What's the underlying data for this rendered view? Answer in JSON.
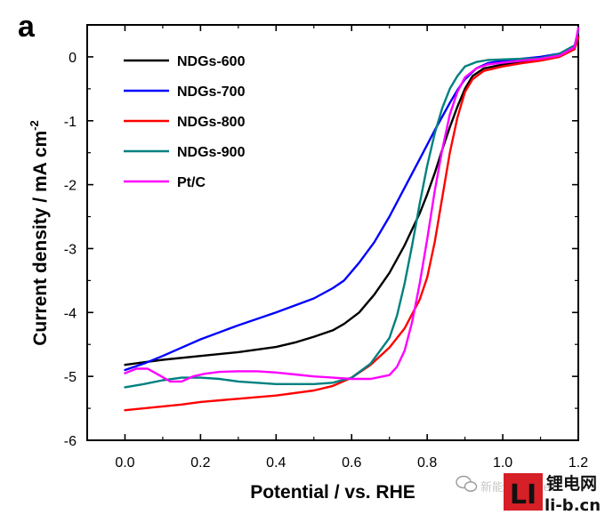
{
  "chart_data": {
    "type": "line",
    "panel_label": "a",
    "title": "",
    "xlabel": "Potential / vs. RHE",
    "ylabel_main": "Current density / mA cm",
    "ylabel_sup": "-2",
    "xlim": [
      -0.1,
      1.2
    ],
    "ylim": [
      -6,
      0.5
    ],
    "xticks": [
      0.0,
      0.2,
      0.4,
      0.6,
      0.8,
      1.0,
      1.2
    ],
    "xtick_labels": [
      "0.0",
      "0.2",
      "0.4",
      "0.6",
      "0.8",
      "1.0",
      "1.2"
    ],
    "yticks": [
      0,
      -1,
      -2,
      -3,
      -4,
      -5,
      -6
    ],
    "ytick_labels": [
      "0",
      "-1",
      "-2",
      "-3",
      "-4",
      "-5",
      "-6"
    ],
    "grid": false,
    "legend_position": "top-left",
    "series": [
      {
        "name": "NDGs-600",
        "color": "#000000",
        "x": [
          0.0,
          0.05,
          0.1,
          0.2,
          0.3,
          0.4,
          0.45,
          0.5,
          0.55,
          0.58,
          0.62,
          0.66,
          0.7,
          0.74,
          0.78,
          0.8,
          0.82,
          0.84,
          0.86,
          0.88,
          0.9,
          0.92,
          0.95,
          1.0,
          1.05,
          1.1,
          1.15,
          1.19,
          1.2
        ],
        "y": [
          -4.82,
          -4.78,
          -4.74,
          -4.68,
          -4.62,
          -4.54,
          -4.47,
          -4.38,
          -4.28,
          -4.18,
          -4.0,
          -3.72,
          -3.38,
          -2.95,
          -2.45,
          -2.15,
          -1.82,
          -1.45,
          -1.1,
          -0.78,
          -0.5,
          -0.3,
          -0.18,
          -0.12,
          -0.08,
          -0.04,
          0.02,
          0.15,
          0.32
        ]
      },
      {
        "name": "NDGs-700",
        "color": "#0000ff",
        "x": [
          0.0,
          0.05,
          0.1,
          0.15,
          0.2,
          0.3,
          0.4,
          0.5,
          0.55,
          0.58,
          0.62,
          0.66,
          0.7,
          0.74,
          0.78,
          0.82,
          0.86,
          0.88,
          0.9,
          0.93,
          0.96,
          1.0,
          1.05,
          1.1,
          1.15,
          1.19,
          1.2
        ],
        "y": [
          -4.9,
          -4.8,
          -4.68,
          -4.55,
          -4.42,
          -4.2,
          -4.0,
          -3.78,
          -3.62,
          -3.5,
          -3.22,
          -2.9,
          -2.5,
          -2.05,
          -1.6,
          -1.15,
          -0.72,
          -0.52,
          -0.35,
          -0.18,
          -0.1,
          -0.06,
          -0.03,
          0.0,
          0.05,
          0.15,
          0.3
        ]
      },
      {
        "name": "NDGs-800",
        "color": "#ff0000",
        "x": [
          0.0,
          0.05,
          0.1,
          0.15,
          0.2,
          0.3,
          0.4,
          0.5,
          0.55,
          0.6,
          0.65,
          0.7,
          0.74,
          0.78,
          0.8,
          0.82,
          0.84,
          0.86,
          0.88,
          0.9,
          0.92,
          0.95,
          1.0,
          1.05,
          1.1,
          1.15,
          1.19,
          1.2
        ],
        "y": [
          -5.53,
          -5.5,
          -5.47,
          -5.44,
          -5.4,
          -5.35,
          -5.3,
          -5.22,
          -5.15,
          -5.02,
          -4.82,
          -4.55,
          -4.25,
          -3.8,
          -3.45,
          -2.9,
          -2.2,
          -1.5,
          -0.95,
          -0.55,
          -0.35,
          -0.22,
          -0.15,
          -0.1,
          -0.06,
          0.0,
          0.12,
          0.3
        ]
      },
      {
        "name": "NDGs-900",
        "color": "#008080",
        "x": [
          0.0,
          0.05,
          0.1,
          0.15,
          0.2,
          0.25,
          0.3,
          0.4,
          0.5,
          0.55,
          0.6,
          0.65,
          0.7,
          0.72,
          0.74,
          0.76,
          0.78,
          0.8,
          0.82,
          0.84,
          0.86,
          0.88,
          0.9,
          0.93,
          0.96,
          1.0,
          1.05,
          1.1,
          1.15,
          1.19,
          1.2
        ],
        "y": [
          -5.17,
          -5.12,
          -5.06,
          -5.02,
          -5.02,
          -5.04,
          -5.08,
          -5.12,
          -5.12,
          -5.1,
          -5.02,
          -4.8,
          -4.4,
          -4.05,
          -3.55,
          -2.95,
          -2.3,
          -1.7,
          -1.2,
          -0.8,
          -0.5,
          -0.3,
          -0.15,
          -0.08,
          -0.05,
          -0.04,
          -0.03,
          -0.02,
          0.05,
          0.18,
          0.4
        ]
      },
      {
        "name": "Pt/C",
        "color": "#ff00ff",
        "x": [
          0.0,
          0.03,
          0.06,
          0.09,
          0.12,
          0.15,
          0.18,
          0.21,
          0.25,
          0.3,
          0.35,
          0.4,
          0.45,
          0.5,
          0.55,
          0.6,
          0.65,
          0.7,
          0.72,
          0.74,
          0.76,
          0.78,
          0.8,
          0.82,
          0.84,
          0.86,
          0.88,
          0.9,
          0.93,
          0.96,
          1.0,
          1.05,
          1.1,
          1.15,
          1.19,
          1.2
        ],
        "y": [
          -4.95,
          -4.88,
          -4.88,
          -4.98,
          -5.08,
          -5.08,
          -5.0,
          -4.96,
          -4.93,
          -4.92,
          -4.92,
          -4.94,
          -4.97,
          -5.0,
          -5.02,
          -5.04,
          -5.04,
          -4.98,
          -4.85,
          -4.6,
          -4.15,
          -3.55,
          -2.85,
          -2.1,
          -1.45,
          -0.9,
          -0.55,
          -0.32,
          -0.18,
          -0.12,
          -0.09,
          -0.06,
          -0.03,
          0.02,
          0.15,
          0.45
        ]
      }
    ]
  },
  "watermark": {
    "site_name": "锂电网",
    "site_url": "li-b.cn",
    "logo_letters": "LI",
    "logo_color": "#d61f26",
    "side_text": "新能源Leader"
  }
}
